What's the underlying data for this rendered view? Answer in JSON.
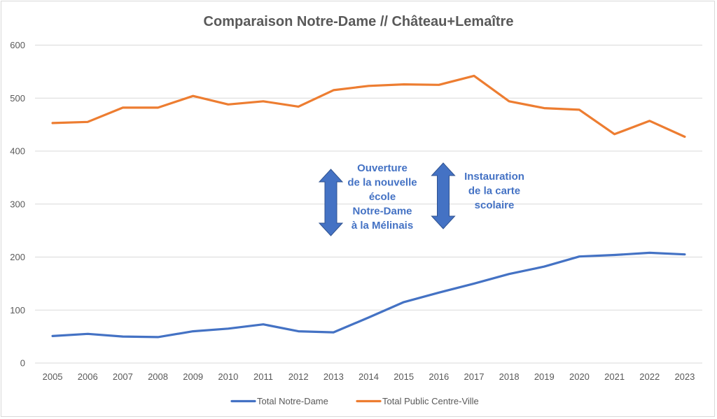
{
  "chart_data": {
    "type": "line",
    "title": "Comparaison Notre-Dame // Château+Lemaître",
    "xlabel": "",
    "ylabel": "",
    "ylim": [
      0,
      600
    ],
    "yticks": [
      "0",
      "100",
      "200",
      "300",
      "400",
      "500",
      "600"
    ],
    "grid": true,
    "legend_position": "bottom",
    "categories": [
      "2005",
      "2006",
      "2007",
      "2008",
      "2009",
      "2010",
      "2011",
      "2012",
      "2013",
      "2014",
      "2015",
      "2016",
      "2017",
      "2018",
      "2019",
      "2020",
      "2021",
      "2022",
      "2023"
    ],
    "series": [
      {
        "name": "Total Notre-Dame",
        "color": "#4472C4",
        "values": [
          51,
          55,
          50,
          49,
          60,
          65,
          73,
          60,
          58,
          86,
          115,
          133,
          150,
          168,
          182,
          201,
          204,
          208,
          205
        ]
      },
      {
        "name": "Total Public Centre-Ville",
        "color": "#ED7D31",
        "values": [
          453,
          455,
          482,
          482,
          504,
          488,
          494,
          484,
          515,
          523,
          526,
          525,
          542,
          494,
          481,
          478,
          432,
          457,
          427
        ]
      }
    ],
    "annotations": [
      {
        "type": "double-arrow",
        "between": [
          "2013",
          "2014"
        ],
        "color": "#4472C4",
        "lines": [
          "Ouverture",
          "de la nouvelle",
          "école",
          "Notre-Dame",
          "à la Mélinais"
        ]
      },
      {
        "type": "double-arrow",
        "between": [
          "2016",
          "2017"
        ],
        "color": "#4472C4",
        "lines": [
          "Instauration",
          "de la carte",
          "scolaire"
        ]
      }
    ]
  }
}
